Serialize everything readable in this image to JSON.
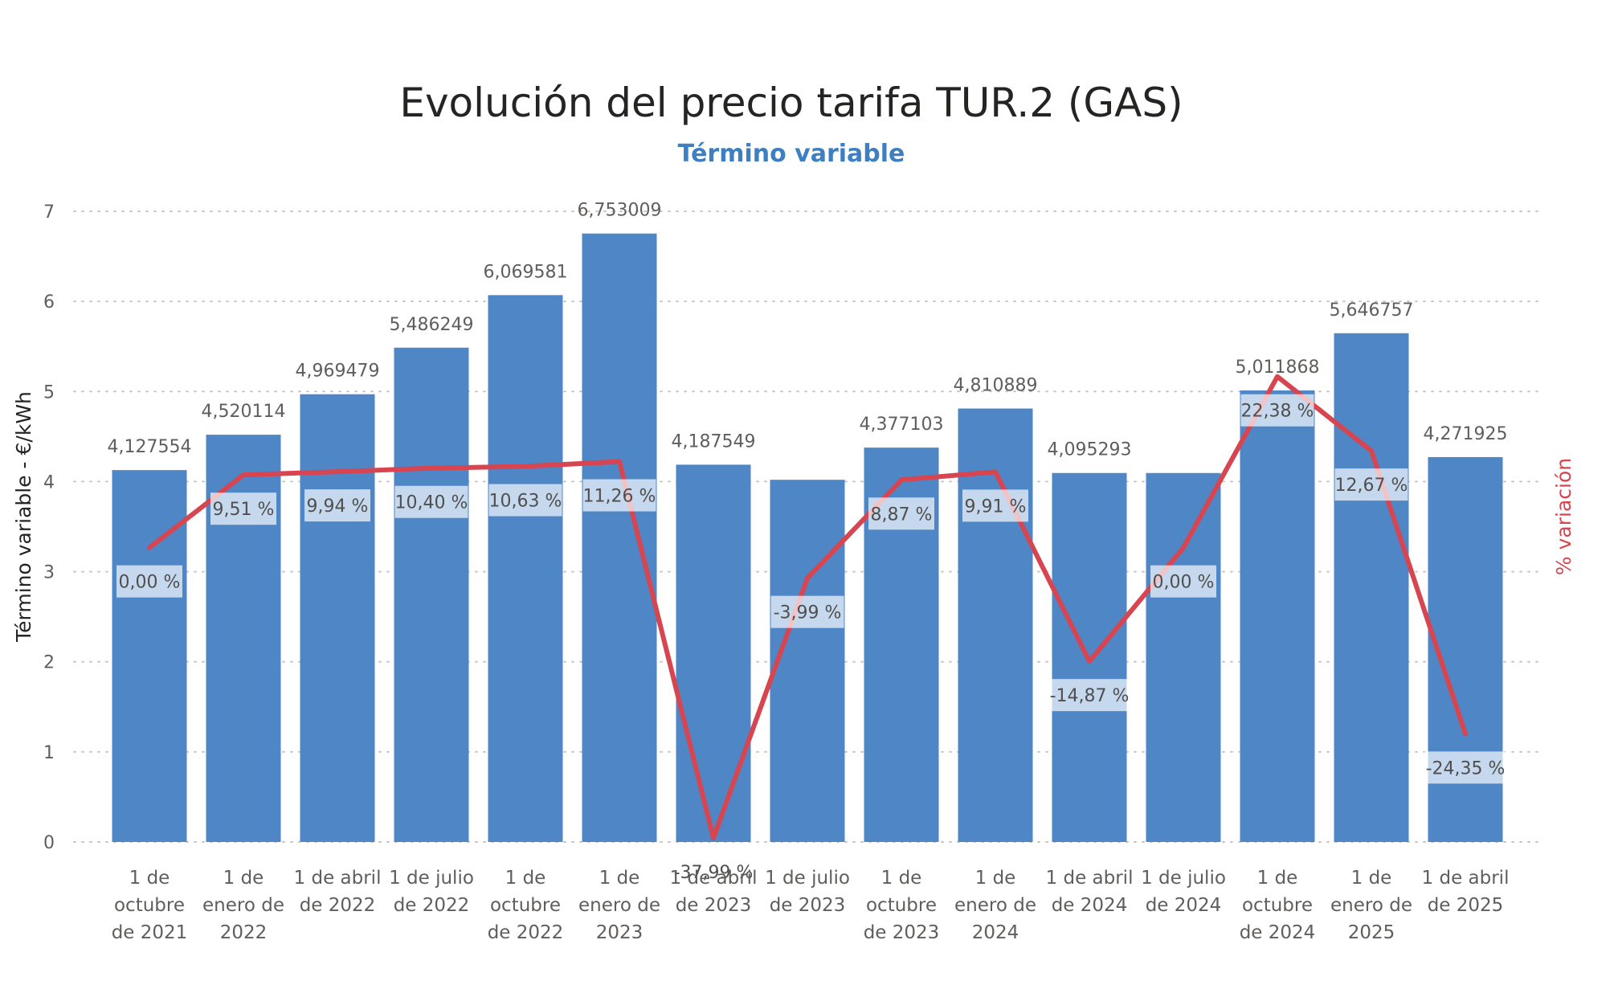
{
  "chart_data": {
    "type": "bar",
    "title": "Evolución del precio tarifa TUR.2 (GAS)",
    "subtitle": "Término variable",
    "ylabel": "Término variable - €/kWh",
    "y2label": "% variación",
    "ylim": [
      0,
      7
    ],
    "yticks": [
      "0",
      "1",
      "2",
      "3",
      "4",
      "5",
      "6",
      "7"
    ],
    "grid": true,
    "categories": [
      [
        "1 de",
        "octubre",
        "de 2021"
      ],
      [
        "1 de",
        "enero de",
        "2022"
      ],
      [
        "1 de abril",
        "de 2022"
      ],
      [
        "1 de julio",
        "de 2022"
      ],
      [
        "1 de",
        "octubre",
        "de 2022"
      ],
      [
        "1 de",
        "enero de",
        "2023"
      ],
      [
        "1 de abril",
        "de 2023"
      ],
      [
        "1 de julio",
        "de 2023"
      ],
      [
        "1 de",
        "octubre",
        "de 2023"
      ],
      [
        "1 de",
        "enero de",
        "2024"
      ],
      [
        "1 de abril",
        "de 2024"
      ],
      [
        "1 de julio",
        "de 2024"
      ],
      [
        "1 de",
        "octubre",
        "de 2024"
      ],
      [
        "1 de",
        "enero de",
        "2025"
      ],
      [
        "1 de abril",
        "de 2025"
      ]
    ],
    "series": [
      {
        "type": "bar",
        "color": "#4f86c6",
        "values": [
          4.127554,
          4.520114,
          4.969479,
          5.486249,
          6.069581,
          6.753009,
          4.187549,
          4.02,
          4.377103,
          4.810889,
          4.095293,
          4.095293,
          5.011868,
          5.646757,
          4.271925
        ],
        "labels": [
          "4,127554",
          "4,520114",
          "4,969479",
          "5,486249",
          "6,069581",
          "6,753009",
          "4,187549",
          "",
          "4,377103",
          "4,810889",
          "4,095293",
          "",
          "5,011868",
          "5,646757",
          "4,271925"
        ]
      },
      {
        "name": "% variación",
        "type": "line",
        "color": "#d64550",
        "values": [
          0.0,
          9.51,
          9.94,
          10.4,
          10.63,
          11.26,
          -37.99,
          -3.99,
          8.87,
          9.91,
          -14.87,
          0.0,
          22.38,
          12.67,
          -24.35
        ],
        "labels": [
          "0,00 %",
          "9,51 %",
          "9,94 %",
          "10,40 %",
          "10,63 %",
          "11,26 %",
          "-37,99 %",
          "-3,99 %",
          "8,87 %",
          "9,91 %",
          "-14,87 %",
          "0,00 %",
          "22,38 %",
          "12,67 %",
          "-24,35 %"
        ],
        "ylim": [
          -38.5,
          44
        ]
      }
    ]
  }
}
